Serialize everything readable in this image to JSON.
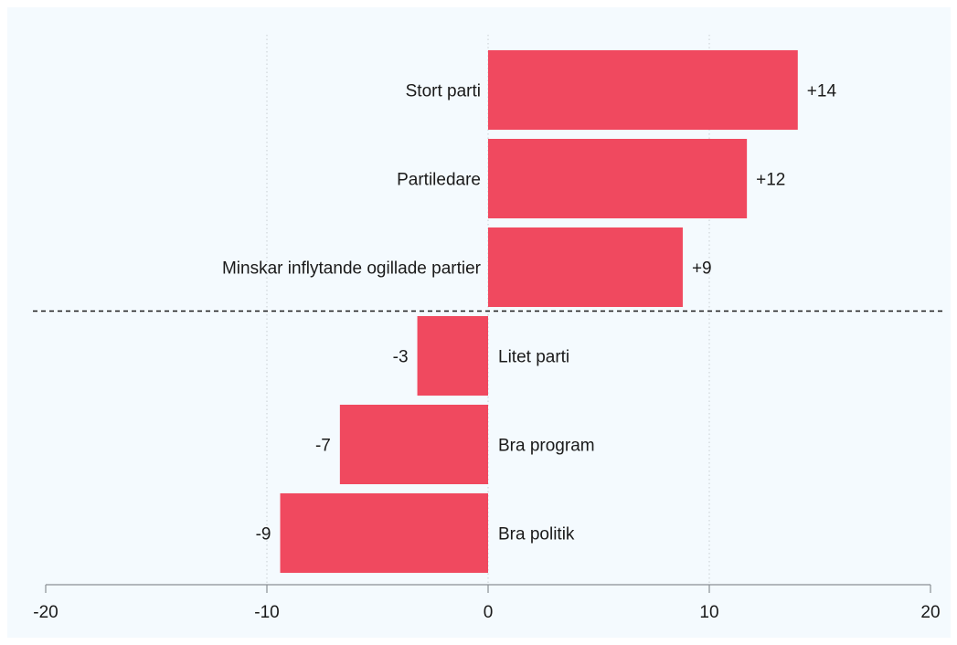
{
  "chart_data": {
    "type": "bar",
    "orientation": "horizontal",
    "title": "",
    "xlabel": "",
    "ylabel": "",
    "xlim": [
      -20,
      20
    ],
    "xticks": [
      -20,
      -10,
      0,
      10,
      20
    ],
    "grid": true,
    "legend": "none",
    "bar_color": "#f0495f",
    "background": "#f4fafe",
    "categories": [
      "Stort parti",
      "Partiledare",
      "Minskar inflytande ogillade partier",
      "Litet parti",
      "Bra program",
      "Bra politik"
    ],
    "values": [
      14,
      11.7,
      8.8,
      -3.2,
      -6.7,
      -9.4
    ],
    "value_labels": [
      "+14",
      "+12",
      "+9",
      "-3",
      "-7",
      "-9"
    ],
    "separator_after_index": 2
  }
}
